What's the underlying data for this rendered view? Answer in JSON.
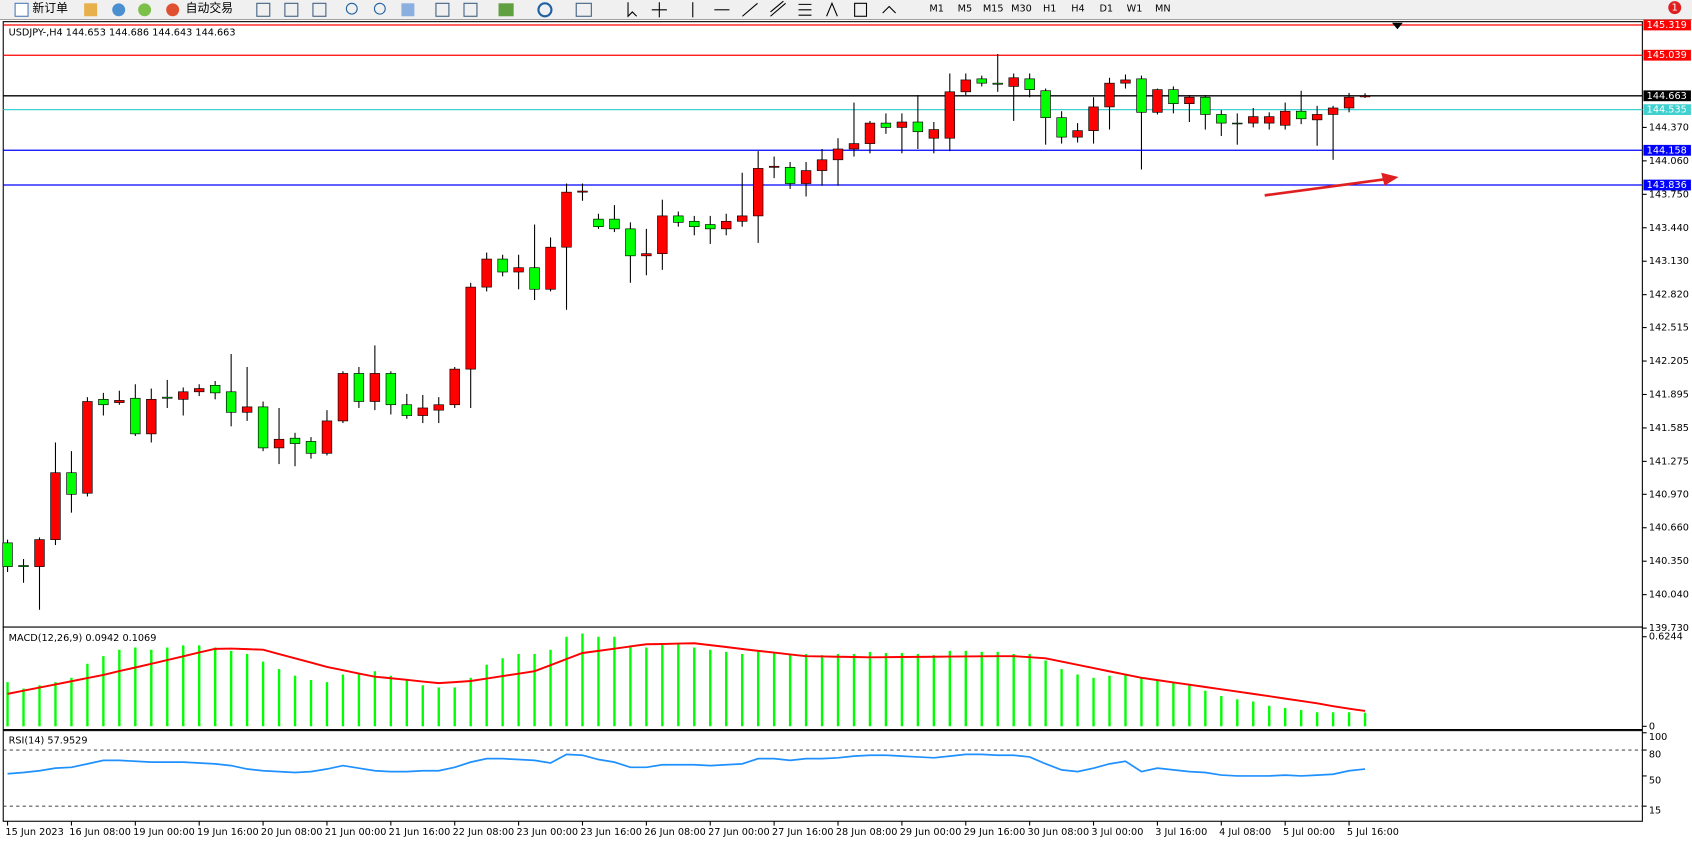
{
  "toolbar": {
    "new_order": "新订单",
    "auto_trading": "自动交易",
    "timeframes": [
      "M1",
      "M5",
      "M15",
      "M30",
      "H1",
      "H4",
      "D1",
      "W1",
      "MN"
    ],
    "badge": "1"
  },
  "chart_data": [
    {
      "type": "candlestick",
      "title": "USDJPY-,H4 144.653 144.686 144.643 144.663",
      "up_color": "#ff0000",
      "down_color": "#00ff00",
      "categories": [
        "15 Jun 2023",
        null,
        null,
        null,
        "16 Jun 08:00",
        null,
        null,
        null,
        "19 Jun 00:00",
        null,
        null,
        null,
        "19 Jun 16:00",
        null,
        null,
        null,
        "20 Jun 08:00",
        null,
        null,
        null,
        "21 Jun 00:00",
        null,
        null,
        null,
        "21 Jun 16:00",
        null,
        null,
        null,
        "22 Jun 08:00",
        null,
        null,
        null,
        "23 Jun 00:00",
        null,
        null,
        null,
        "23 Jun 16:00",
        null,
        null,
        null,
        "26 Jun 08:00",
        null,
        null,
        null,
        "27 Jun 00:00",
        null,
        null,
        null,
        "27 Jun 16:00",
        null,
        null,
        null,
        "28 Jun 08:00",
        null,
        null,
        null,
        "29 Jun 00:00",
        null,
        null,
        null,
        "29 Jun 16:00",
        null,
        null,
        null,
        "30 Jun 08:00",
        null,
        null,
        null,
        "3 Jul 00:00",
        null,
        null,
        null,
        "3 Jul 16:00",
        null,
        null,
        null,
        "4 Jul 08:00",
        null,
        null,
        null,
        "5 Jul 00:00",
        null,
        null,
        null,
        "5 Jul 16:00",
        null
      ],
      "open": [
        140.52,
        140.31,
        140.3,
        140.55,
        141.17,
        140.98,
        141.85,
        141.82,
        141.86,
        141.53,
        141.87,
        141.85,
        141.92,
        141.98,
        141.92,
        141.73,
        141.78,
        141.4,
        141.49,
        141.46,
        141.35,
        141.65,
        142.09,
        141.83,
        142.09,
        141.8,
        141.7,
        141.75,
        141.8,
        142.13,
        142.89,
        143.15,
        143.03,
        143.07,
        142.87,
        143.26,
        143.77,
        143.52,
        143.52,
        143.43,
        143.18,
        143.2,
        143.55,
        143.5,
        143.47,
        143.43,
        143.5,
        143.55,
        144.0,
        144.0,
        143.85,
        143.97,
        144.07,
        144.17,
        144.22,
        144.41,
        144.37,
        144.42,
        144.27,
        144.27,
        144.7,
        144.82,
        144.78,
        144.75,
        144.82,
        144.71,
        144.46,
        144.28,
        144.34,
        144.56,
        144.78,
        144.82,
        144.51,
        144.72,
        144.59,
        144.65,
        144.49,
        144.41,
        144.41,
        144.41,
        144.39,
        144.52,
        144.44,
        144.49,
        144.55,
        144.653
      ],
      "high": [
        140.55,
        140.37,
        140.57,
        141.45,
        141.37,
        141.87,
        141.91,
        141.93,
        141.99,
        141.95,
        142.03,
        141.96,
        141.99,
        142.02,
        142.27,
        142.15,
        141.83,
        141.77,
        141.54,
        141.5,
        141.75,
        142.11,
        142.15,
        142.35,
        142.11,
        141.9,
        141.89,
        141.87,
        142.15,
        142.93,
        143.21,
        143.19,
        143.19,
        143.47,
        143.35,
        143.85,
        143.85,
        143.57,
        143.65,
        143.49,
        143.43,
        143.7,
        143.59,
        143.55,
        143.55,
        143.57,
        143.95,
        144.15,
        144.1,
        144.05,
        144.05,
        144.17,
        144.27,
        144.6,
        144.43,
        144.5,
        144.5,
        144.67,
        144.42,
        144.87,
        144.87,
        144.85,
        145.05,
        144.87,
        144.87,
        144.73,
        144.52,
        144.41,
        144.65,
        144.83,
        144.86,
        144.85,
        144.73,
        144.75,
        144.67,
        144.67,
        144.53,
        144.5,
        144.55,
        144.51,
        144.6,
        144.71,
        144.57,
        144.57,
        144.69,
        144.686
      ],
      "low": [
        140.25,
        140.15,
        139.9,
        140.5,
        140.8,
        140.95,
        141.7,
        141.8,
        141.51,
        141.45,
        141.77,
        141.7,
        141.88,
        141.85,
        141.6,
        141.65,
        141.37,
        141.25,
        141.23,
        141.3,
        141.33,
        141.63,
        141.77,
        141.75,
        141.71,
        141.67,
        141.63,
        141.63,
        141.77,
        141.77,
        142.85,
        142.99,
        142.87,
        142.77,
        142.85,
        142.68,
        143.69,
        143.43,
        143.4,
        142.93,
        143.0,
        143.05,
        143.45,
        143.37,
        143.29,
        143.37,
        143.45,
        143.3,
        143.9,
        143.8,
        143.73,
        143.83,
        143.83,
        144.1,
        144.13,
        144.31,
        144.13,
        144.17,
        144.13,
        144.15,
        144.67,
        144.75,
        144.7,
        144.43,
        144.65,
        144.21,
        144.22,
        144.23,
        144.22,
        144.35,
        144.73,
        143.98,
        144.49,
        144.5,
        144.42,
        144.35,
        144.29,
        144.21,
        144.37,
        144.35,
        144.35,
        144.4,
        144.2,
        144.07,
        144.51,
        144.643
      ],
      "close": [
        140.3,
        140.3,
        140.55,
        141.17,
        140.97,
        141.83,
        141.8,
        141.84,
        141.53,
        141.85,
        141.86,
        141.92,
        141.95,
        141.91,
        141.73,
        141.78,
        141.4,
        141.48,
        141.44,
        141.35,
        141.65,
        142.09,
        141.83,
        142.09,
        141.8,
        141.7,
        141.77,
        141.8,
        142.13,
        142.89,
        143.15,
        143.03,
        143.07,
        142.87,
        143.26,
        143.77,
        143.78,
        143.45,
        143.43,
        143.18,
        143.2,
        143.55,
        143.49,
        143.45,
        143.43,
        143.5,
        143.55,
        143.99,
        144.01,
        143.85,
        143.97,
        144.07,
        144.17,
        144.22,
        144.41,
        144.37,
        144.42,
        144.33,
        144.35,
        144.7,
        144.81,
        144.78,
        144.77,
        144.83,
        144.72,
        144.46,
        144.28,
        144.34,
        144.56,
        144.78,
        144.81,
        144.51,
        144.72,
        144.59,
        144.65,
        144.49,
        144.41,
        144.41,
        144.47,
        144.47,
        144.52,
        144.45,
        144.49,
        144.55,
        144.65,
        144.663
      ],
      "ylim": [
        139.72,
        145.33
      ],
      "yticks": [
        {
          "value": 144.37,
          "label": "144.370"
        },
        {
          "value": 144.06,
          "label": "144.060"
        },
        {
          "value": 143.75,
          "label": "143.750"
        },
        {
          "value": 143.44,
          "label": "143.440"
        },
        {
          "value": 143.13,
          "label": "143.130"
        },
        {
          "value": 142.82,
          "label": "142.820"
        },
        142.515,
        142.205,
        141.895,
        141.585,
        141.275,
        {
          "value": 140.97,
          "label": "140.970"
        },
        {
          "value": 140.66,
          "label": "140.660"
        },
        {
          "value": 140.35,
          "label": "140.350"
        },
        {
          "value": 140.04,
          "label": "140.040"
        },
        {
          "value": 139.73,
          "label": "139.730"
        }
      ],
      "hlines": [
        {
          "value": 145.319,
          "color": "#ff0000"
        },
        {
          "value": 145.039,
          "color": "#ff0000"
        },
        {
          "value": 144.663,
          "color": "#000000"
        },
        {
          "value": 144.535,
          "color": "#40d0d0"
        },
        {
          "value": 144.158,
          "color": "#0000ff"
        },
        {
          "value": 143.836,
          "color": "#0000ff"
        }
      ]
    },
    {
      "type": "macd",
      "title": "MACD(12,26,9) 0.0942 0.1069",
      "color": "#00ff00",
      "signal_color": "#ff0000",
      "values": [
        0.308,
        0.263,
        0.286,
        0.308,
        0.338,
        0.436,
        0.489,
        0.534,
        0.549,
        0.534,
        0.549,
        0.564,
        0.564,
        0.549,
        0.526,
        0.504,
        0.451,
        0.399,
        0.353,
        0.323,
        0.308,
        0.361,
        0.361,
        0.384,
        0.353,
        0.323,
        0.286,
        0.271,
        0.271,
        0.338,
        0.429,
        0.474,
        0.504,
        0.504,
        0.534,
        0.624,
        0.647,
        0.624,
        0.624,
        0.564,
        0.549,
        0.579,
        0.572,
        0.549,
        0.534,
        0.519,
        0.504,
        0.519,
        0.511,
        0.504,
        0.504,
        0.496,
        0.504,
        0.504,
        0.519,
        0.511,
        0.511,
        0.504,
        0.496,
        0.526,
        0.526,
        0.519,
        0.519,
        0.504,
        0.504,
        0.459,
        0.399,
        0.361,
        0.338,
        0.353,
        0.368,
        0.338,
        0.323,
        0.308,
        0.286,
        0.248,
        0.211,
        0.188,
        0.173,
        0.143,
        0.128,
        0.113,
        0.098,
        0.098,
        0.098,
        0.0942
      ],
      "signal": [
        0.226,
        0.248,
        0.27,
        0.292,
        0.314,
        0.336,
        0.358,
        0.385,
        0.41,
        0.436,
        0.462,
        0.488,
        0.515,
        0.54,
        0.542,
        0.538,
        0.534,
        0.504,
        0.474,
        0.444,
        0.414,
        0.391,
        0.368,
        0.346,
        0.335,
        0.324,
        0.312,
        0.301,
        0.308,
        0.316,
        0.333,
        0.35,
        0.367,
        0.384,
        0.426,
        0.469,
        0.511,
        0.526,
        0.541,
        0.557,
        0.572,
        0.574,
        0.577,
        0.579,
        0.566,
        0.553,
        0.539,
        0.526,
        0.514,
        0.501,
        0.489,
        0.487,
        0.485,
        0.483,
        0.481,
        0.482,
        0.483,
        0.484,
        0.485,
        0.486,
        0.487,
        0.488,
        0.489,
        0.489,
        0.482,
        0.474,
        0.451,
        0.429,
        0.406,
        0.383,
        0.361,
        0.338,
        0.322,
        0.306,
        0.29,
        0.274,
        0.258,
        0.242,
        0.226,
        0.21,
        0.193,
        0.177,
        0.16,
        0.14,
        0.123,
        0.1069
      ],
      "ylim": [
        0,
        0.6244
      ],
      "yticks": [
        0.6244,
        0
      ]
    },
    {
      "type": "line",
      "title": "RSI(14) 57.9529",
      "color": "#1e90ff",
      "values": [
        52.5,
        54,
        56,
        59,
        60,
        64,
        68,
        68,
        67,
        66,
        66,
        66,
        65,
        64,
        62,
        58,
        56,
        55,
        54,
        55,
        58,
        62,
        59,
        56,
        55,
        55,
        56,
        56,
        60,
        66,
        70,
        70,
        69,
        68,
        65,
        75,
        74,
        69,
        66,
        60,
        60,
        63,
        63,
        63,
        62,
        63,
        64,
        70,
        70,
        68,
        70,
        70,
        71,
        73,
        74,
        74,
        73,
        72,
        71,
        73,
        75,
        75,
        74,
        74,
        72,
        64,
        57,
        55,
        59,
        64,
        67,
        55,
        59,
        57,
        55,
        54,
        51,
        50,
        50,
        50,
        51,
        50,
        51,
        52,
        56,
        57.9529
      ],
      "ylim": [
        0,
        100
      ],
      "yticks": [
        100,
        80,
        50,
        15
      ],
      "levels": [
        80,
        15
      ]
    }
  ]
}
